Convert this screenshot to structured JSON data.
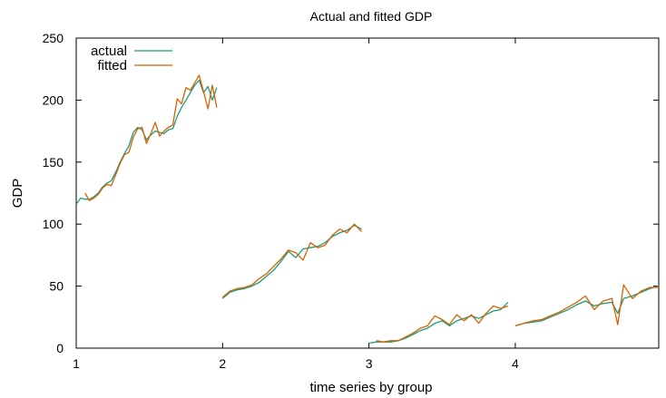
{
  "chart_data": {
    "type": "line",
    "title": "Actual and fitted GDP",
    "xlabel": "time series by group",
    "ylabel": "GDP",
    "xlim": [
      1,
      4.98
    ],
    "ylim": [
      0,
      250
    ],
    "xticks": [
      1,
      2,
      3,
      4
    ],
    "yticks": [
      0,
      50,
      100,
      150,
      200,
      250
    ],
    "grid": false,
    "legend_position": "top-left",
    "series": [
      {
        "name": "actual",
        "color": "#1a9e77",
        "segments": [
          {
            "x": [
              1.0,
              1.03,
              1.06,
              1.09,
              1.12,
              1.15,
              1.18,
              1.21,
              1.24,
              1.27,
              1.3,
              1.33,
              1.36,
              1.39,
              1.42,
              1.45,
              1.48,
              1.51,
              1.54,
              1.57,
              1.6,
              1.63,
              1.66,
              1.69,
              1.72,
              1.75,
              1.78,
              1.81,
              1.84,
              1.87,
              1.9,
              1.93,
              1.96
            ],
            "y": [
              116,
              121,
              120,
              120,
              122,
              125,
              130,
              133,
              135,
              142,
              150,
              157,
              163,
              174,
              178,
              176,
              168,
              172,
              175,
              174,
              173,
              176,
              177,
              187,
              194,
              200,
              206,
              212,
              216,
              206,
              211,
              200,
              210
            ]
          },
          {
            "x": [
              2.0,
              2.05,
              2.1,
              2.15,
              2.2,
              2.25,
              2.3,
              2.35,
              2.4,
              2.45,
              2.5,
              2.55,
              2.6,
              2.65,
              2.7,
              2.75,
              2.8,
              2.85,
              2.9,
              2.95
            ],
            "y": [
              40,
              45,
              47,
              48,
              50,
              53,
              58,
              63,
              70,
              78,
              73,
              80,
              81,
              82,
              85,
              90,
              93,
              95,
              99,
              96
            ]
          },
          {
            "x": [
              3.0,
              3.05,
              3.1,
              3.15,
              3.2,
              3.25,
              3.3,
              3.35,
              3.4,
              3.45,
              3.5,
              3.55,
              3.6,
              3.65,
              3.7,
              3.75,
              3.8,
              3.85,
              3.9,
              3.95
            ],
            "y": [
              4,
              5,
              5,
              5,
              6,
              8,
              11,
              14,
              16,
              20,
              22,
              18,
              22,
              24,
              26,
              24,
              27,
              30,
              31,
              37
            ]
          },
          {
            "x": [
              4.0,
              4.06,
              4.12,
              4.18,
              4.24,
              4.3,
              4.36,
              4.42,
              4.48,
              4.54,
              4.6,
              4.66,
              4.7,
              4.74,
              4.8,
              4.86,
              4.92,
              4.98
            ],
            "y": [
              18,
              20,
              21,
              22,
              25,
              28,
              31,
              35,
              38,
              34,
              36,
              37,
              28,
              40,
              42,
              45,
              48,
              50
            ]
          }
        ]
      },
      {
        "name": "fitted",
        "color": "#d95f02",
        "segments": [
          {
            "x": [
              1.06,
              1.09,
              1.12,
              1.15,
              1.18,
              1.21,
              1.24,
              1.27,
              1.3,
              1.33,
              1.36,
              1.39,
              1.42,
              1.45,
              1.48,
              1.51,
              1.54,
              1.57,
              1.6,
              1.63,
              1.66,
              1.69,
              1.72,
              1.75,
              1.78,
              1.81,
              1.84,
              1.87,
              1.9,
              1.93,
              1.96
            ],
            "y": [
              125,
              119,
              121,
              124,
              129,
              132,
              131,
              140,
              149,
              156,
              158,
              170,
              177,
              178,
              165,
              173,
              182,
              171,
              175,
              178,
              180,
              201,
              197,
              210,
              208,
              214,
              220,
              207,
              193,
              212,
              194
            ]
          },
          {
            "x": [
              2.0,
              2.05,
              2.1,
              2.15,
              2.2,
              2.25,
              2.3,
              2.35,
              2.4,
              2.45,
              2.5,
              2.55,
              2.6,
              2.65,
              2.7,
              2.75,
              2.8,
              2.85,
              2.9,
              2.95
            ],
            "y": [
              41,
              46,
              48,
              49,
              51,
              56,
              60,
              66,
              72,
              79,
              77,
              71,
              85,
              81,
              83,
              91,
              96,
              93,
              100,
              94
            ]
          },
          {
            "x": [
              3.05,
              3.1,
              3.15,
              3.2,
              3.25,
              3.3,
              3.35,
              3.4,
              3.45,
              3.5,
              3.55,
              3.6,
              3.65,
              3.7,
              3.75,
              3.8,
              3.85,
              3.9,
              3.95
            ],
            "y": [
              6,
              5,
              6,
              6,
              9,
              12,
              16,
              18,
              26,
              23,
              19,
              27,
              22,
              27,
              20,
              28,
              34,
              32,
              34
            ]
          },
          {
            "x": [
              4.0,
              4.06,
              4.12,
              4.18,
              4.24,
              4.3,
              4.36,
              4.42,
              4.48,
              4.54,
              4.6,
              4.66,
              4.7,
              4.74,
              4.8,
              4.86,
              4.92,
              4.98
            ],
            "y": [
              18,
              20,
              22,
              23,
              26,
              29,
              33,
              37,
              42,
              31,
              38,
              40,
              19,
              51,
              40,
              46,
              49,
              49
            ]
          }
        ]
      }
    ]
  }
}
